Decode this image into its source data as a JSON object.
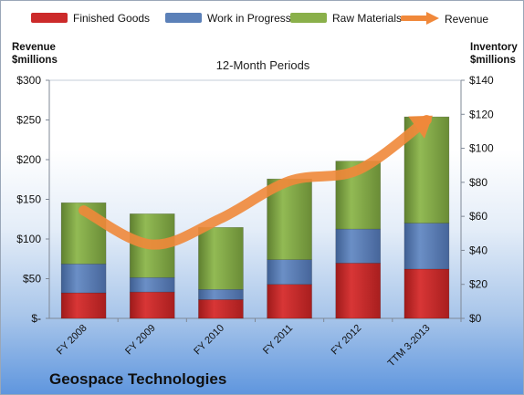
{
  "legend": {
    "finished_goods": "Finished Goods",
    "work_in_progress": "Work in Progress",
    "raw_materials": "Raw Materials",
    "revenue": "Revenue"
  },
  "colors": {
    "finished_goods": "#cc2a2a",
    "work_in_progress": "#5b80b8",
    "raw_materials": "#8ab04a",
    "revenue": "#f0883a"
  },
  "left_axis_title_line1": "Revenue",
  "left_axis_title_line2": "$millions",
  "right_axis_title_line1": "Inventory",
  "right_axis_title_line2": "$millions",
  "subtitle": "12-Month Periods",
  "company": "Geospace Technologies",
  "chart_data": {
    "type": "bar",
    "stacked": true,
    "subtitle": "12-Month Periods",
    "categories": [
      "FY 2008",
      "FY 2009",
      "FY 2010",
      "FY 2011",
      "FY 2012",
      "TTM 3-2013"
    ],
    "series": [
      {
        "name": "Finished Goods",
        "axis": "right",
        "values": [
          15,
          15.5,
          11,
          20,
          32.5,
          29
        ]
      },
      {
        "name": "Work in Progress",
        "axis": "right",
        "values": [
          17,
          8.5,
          6,
          14.5,
          20,
          27
        ]
      },
      {
        "name": "Raw Materials",
        "axis": "right",
        "values": [
          36,
          37.5,
          36.5,
          47.5,
          40,
          62.5
        ]
      },
      {
        "name": "Revenue",
        "type": "line",
        "axis": "left",
        "values": [
          136,
          93,
          126,
          173,
          187,
          250
        ]
      }
    ],
    "left_axis": {
      "label": "Revenue $millions",
      "ylim": [
        0,
        300
      ],
      "ticks": [
        "$-",
        "$50",
        "$100",
        "$150",
        "$200",
        "$250",
        "$300"
      ]
    },
    "right_axis": {
      "label": "Inventory $millions",
      "ylim": [
        0,
        140
      ],
      "ticks": [
        "$0",
        "$20",
        "$40",
        "$60",
        "$80",
        "$100",
        "$120",
        "$140"
      ]
    },
    "legend_position": "top",
    "grid": false
  }
}
